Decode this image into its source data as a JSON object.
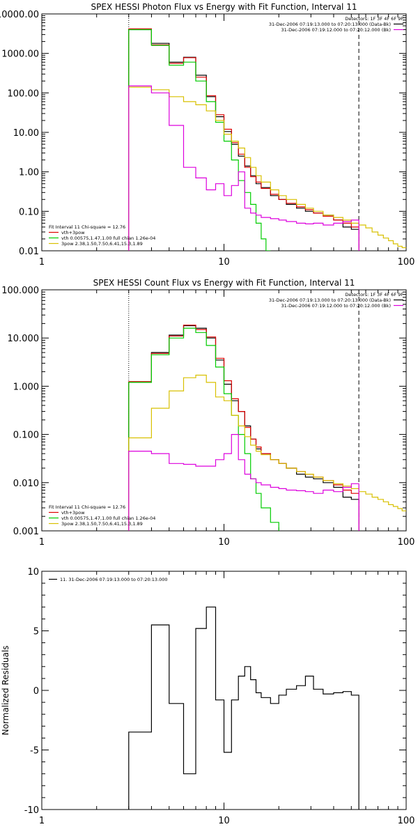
{
  "chart_data": [
    {
      "type": "line",
      "title": "SPEX HESSI Photon Flux vs Energy with Fit Function, Interval 11",
      "x_scale": "log",
      "y_scale": "log",
      "xlim": [
        1,
        100
      ],
      "ylim": [
        0.01,
        10000
      ],
      "x_tick_labels": [
        "1",
        "10",
        "100"
      ],
      "y_tick_labels": [
        "0.01",
        "0.10",
        "1.00",
        "10.00",
        "100.00",
        "1000.00",
        "10000.00"
      ],
      "legend_top": {
        "position": "top-right",
        "lines": [
          {
            "text": "Detectors: 1F 3F 4F 6F 9F",
            "color": ""
          },
          {
            "text": "31-Dec-2006 07:19:13.000 to 07:20:13.000 (Data-Bk)",
            "color": "#000000"
          },
          {
            "text": "31-Dec-2006 07:19:12.000 to 07:20:12.000 (Bk)",
            "color": "#dd00dd"
          }
        ]
      },
      "legend_bottom": {
        "position": "bottom-left",
        "header": "Fit Interval 11   Chi-square = 12.76",
        "lines": [
          {
            "text": "vth+3pow",
            "color": "#dd0000"
          },
          {
            "text": "vth 0.00575,1.47,1.00  full chian 1.26e-04",
            "color": "#00cc00"
          },
          {
            "text": "3pow 2.38,1.50,7.50,6.41,15.3,1.89",
            "color": "#d8c000"
          }
        ]
      },
      "markers": [
        {
          "x": 3.0,
          "style": "dotted"
        },
        {
          "x": 55,
          "style": "dashed"
        }
      ],
      "series": [
        {
          "style": "step",
          "color": "#000000",
          "edges": [
            3,
            4,
            5,
            6,
            7,
            8,
            9,
            10,
            11,
            12,
            13,
            14,
            15,
            16,
            18,
            20,
            22,
            25,
            28,
            31,
            35,
            40,
            45,
            50,
            55
          ],
          "values": [
            4000,
            1800,
            600,
            800,
            280,
            80,
            25,
            10.5,
            5,
            2.5,
            1.4,
            0.8,
            0.5,
            0.4,
            0.25,
            0.2,
            0.15,
            0.12,
            0.1,
            0.09,
            0.08,
            0.06,
            0.04,
            0.035
          ]
        },
        {
          "style": "step",
          "color": "#dd0000",
          "edges": [
            3,
            4,
            5,
            6,
            7,
            8,
            9,
            10,
            11,
            12,
            13,
            14,
            15,
            16,
            18,
            20,
            22,
            25,
            28,
            31,
            35,
            40,
            45,
            50,
            55
          ],
          "values": [
            4200,
            1650,
            560,
            780,
            250,
            85,
            28,
            12,
            5.5,
            2.8,
            1.3,
            0.75,
            0.55,
            0.38,
            0.27,
            0.2,
            0.16,
            0.13,
            0.11,
            0.09,
            0.075,
            0.06,
            0.05,
            0.04
          ]
        },
        {
          "style": "step",
          "color": "#00cc00",
          "edges": [
            3,
            4,
            5,
            6,
            7,
            8,
            9,
            10,
            11,
            12,
            13,
            14,
            15,
            16,
            17,
            18
          ],
          "values": [
            4000,
            1600,
            500,
            600,
            200,
            60,
            18,
            6,
            2,
            0.6,
            0.3,
            0.15,
            0.05,
            0.02,
            0.008
          ]
        },
        {
          "style": "step",
          "color": "#d8c000",
          "edges": [
            3,
            4,
            5,
            6,
            7,
            8,
            9,
            10,
            11,
            12,
            13,
            14,
            15,
            16,
            18,
            20,
            22,
            25,
            28,
            31,
            35,
            40,
            45,
            50,
            55,
            60,
            65,
            70,
            75,
            80,
            85,
            90,
            95,
            100
          ],
          "values": [
            140,
            120,
            80,
            60,
            50,
            35,
            20,
            9,
            6,
            4,
            2.3,
            1.3,
            0.8,
            0.55,
            0.35,
            0.25,
            0.2,
            0.15,
            0.12,
            0.1,
            0.08,
            0.07,
            0.06,
            0.05,
            0.045,
            0.038,
            0.03,
            0.025,
            0.021,
            0.018,
            0.015,
            0.013,
            0.012
          ]
        },
        {
          "style": "step",
          "color": "#dd00dd",
          "edges": [
            3,
            4,
            5,
            6,
            7,
            8,
            9,
            10,
            11,
            12,
            13,
            14,
            15,
            16,
            18,
            20,
            22,
            25,
            28,
            31,
            35,
            40,
            45,
            50,
            55
          ],
          "values": [
            150,
            100,
            15,
            1.3,
            0.7,
            0.35,
            0.5,
            0.25,
            0.45,
            1.0,
            0.12,
            0.09,
            0.08,
            0.07,
            0.065,
            0.06,
            0.055,
            0.05,
            0.048,
            0.05,
            0.045,
            0.05,
            0.055,
            0.06
          ]
        }
      ]
    },
    {
      "type": "line",
      "title": "SPEX HESSI Count Flux vs Energy with Fit Function, Interval 11",
      "x_scale": "log",
      "y_scale": "log",
      "xlim": [
        1,
        100
      ],
      "ylim": [
        0.001,
        100
      ],
      "x_tick_labels": [
        "1",
        "10",
        "100"
      ],
      "y_tick_labels": [
        "0.001",
        "0.010",
        "0.100",
        "1.000",
        "10.000",
        "100.000"
      ],
      "legend_top": {
        "position": "top-right",
        "lines": [
          {
            "text": "Detectors: 1F 3F 4F 6F 9F",
            "color": ""
          },
          {
            "text": "31-Dec-2006 07:19:13.000 to 07:20:13.000 (Data-Bk)",
            "color": "#000000"
          },
          {
            "text": "31-Dec-2006 07:19:12.000 to 07:20:12.000 (Bk)",
            "color": "#dd00dd"
          }
        ]
      },
      "legend_bottom": {
        "position": "bottom-left",
        "header": "Fit Interval 11   Chi-square = 12.76",
        "lines": [
          {
            "text": "vth+3pow",
            "color": "#dd0000"
          },
          {
            "text": "vth 0.00575,1.47,1.00  full chian 1.26e-04",
            "color": "#00cc00"
          },
          {
            "text": "3pow 2.38,1.50,7.50,6.41,15.3,1.89",
            "color": "#d8c000"
          }
        ]
      },
      "markers": [
        {
          "x": 3.0,
          "style": "dotted"
        },
        {
          "x": 55,
          "style": "dashed"
        }
      ],
      "series": [
        {
          "style": "step",
          "color": "#000000",
          "edges": [
            3,
            4,
            5,
            6,
            7,
            8,
            9,
            10,
            11,
            12,
            13,
            14,
            15,
            16,
            18,
            20,
            22,
            25,
            28,
            31,
            35,
            40,
            45,
            50,
            55
          ],
          "values": [
            1.2,
            5.0,
            11.5,
            18,
            16,
            10,
            3.5,
            1.1,
            0.5,
            0.3,
            0.15,
            0.08,
            0.05,
            0.04,
            0.03,
            0.025,
            0.02,
            0.015,
            0.013,
            0.012,
            0.01,
            0.008,
            0.005,
            0.0045
          ]
        },
        {
          "style": "step",
          "color": "#dd0000",
          "edges": [
            3,
            4,
            5,
            6,
            7,
            8,
            9,
            10,
            11,
            12,
            13,
            14,
            15,
            16,
            18,
            20,
            22,
            25,
            28,
            31,
            35,
            40,
            45,
            50,
            55
          ],
          "values": [
            1.25,
            4.8,
            11,
            18.5,
            15,
            10.5,
            3.8,
            1.3,
            0.55,
            0.3,
            0.14,
            0.08,
            0.055,
            0.04,
            0.03,
            0.025,
            0.02,
            0.017,
            0.015,
            0.013,
            0.011,
            0.009,
            0.007,
            0.006
          ]
        },
        {
          "style": "step",
          "color": "#00cc00",
          "edges": [
            3,
            4,
            5,
            6,
            7,
            8,
            9,
            10,
            11,
            12,
            13,
            14,
            15,
            16,
            18,
            20
          ],
          "values": [
            1.2,
            4.5,
            10,
            16,
            13,
            7,
            2.5,
            0.7,
            0.25,
            0.1,
            0.04,
            0.012,
            0.006,
            0.003,
            0.0015
          ]
        },
        {
          "style": "step",
          "color": "#d8c000",
          "edges": [
            3,
            4,
            5,
            6,
            7,
            8,
            9,
            10,
            11,
            12,
            13,
            14,
            15,
            16,
            18,
            20,
            22,
            25,
            28,
            31,
            35,
            40,
            45,
            50,
            55,
            60,
            65,
            70,
            75,
            80,
            85,
            90,
            95,
            100
          ],
          "values": [
            0.085,
            0.35,
            0.8,
            1.5,
            1.7,
            1.2,
            0.6,
            0.5,
            0.25,
            0.15,
            0.09,
            0.06,
            0.045,
            0.038,
            0.03,
            0.025,
            0.02,
            0.017,
            0.015,
            0.013,
            0.011,
            0.0095,
            0.0085,
            0.0075,
            0.0065,
            0.0058,
            0.005,
            0.0045,
            0.004,
            0.0035,
            0.0032,
            0.0029,
            0.0026
          ]
        },
        {
          "style": "step",
          "color": "#dd00dd",
          "edges": [
            3,
            4,
            5,
            6,
            7,
            8,
            9,
            10,
            11,
            12,
            13,
            14,
            15,
            16,
            18,
            20,
            22,
            25,
            28,
            31,
            35,
            40,
            45,
            50,
            55
          ],
          "values": [
            0.045,
            0.04,
            0.025,
            0.024,
            0.022,
            0.022,
            0.03,
            0.04,
            0.1,
            0.03,
            0.015,
            0.012,
            0.01,
            0.009,
            0.008,
            0.0075,
            0.007,
            0.0068,
            0.0065,
            0.006,
            0.007,
            0.0065,
            0.008,
            0.0095
          ]
        }
      ]
    },
    {
      "type": "line",
      "title": "",
      "x_scale": "log",
      "y_scale": "linear",
      "xlim": [
        1,
        100
      ],
      "ylim": [
        -10,
        10
      ],
      "ylabel": "Normalized Residuals",
      "x_tick_labels": [
        "1",
        "10",
        "100"
      ],
      "y_tick_labels": [
        "-10",
        "-5",
        "0",
        "5",
        "10"
      ],
      "y_tick_values": [
        -10,
        -5,
        0,
        5,
        10
      ],
      "legend_top": {
        "position": "top-left",
        "lines": [
          {
            "text": "11. 31-Dec-2006 07:19:13.000 to 07:20:13.000",
            "color": "#000000"
          }
        ]
      },
      "markers": [],
      "series": [
        {
          "style": "step",
          "color": "#000000",
          "edges": [
            3,
            4,
            5,
            6,
            7,
            8,
            9,
            10,
            11,
            12,
            13,
            14,
            15,
            16,
            18,
            20,
            22,
            25,
            28,
            31,
            35,
            40,
            45,
            50,
            55
          ],
          "values": [
            -3.5,
            5.5,
            -1.1,
            -7.0,
            5.2,
            7.0,
            -0.8,
            -5.2,
            -0.8,
            1.2,
            2.0,
            0.9,
            -0.2,
            -0.6,
            -1.1,
            -0.4,
            0.1,
            0.4,
            1.2,
            0.1,
            -0.3,
            -0.2,
            -0.1,
            -0.4
          ]
        }
      ]
    }
  ]
}
